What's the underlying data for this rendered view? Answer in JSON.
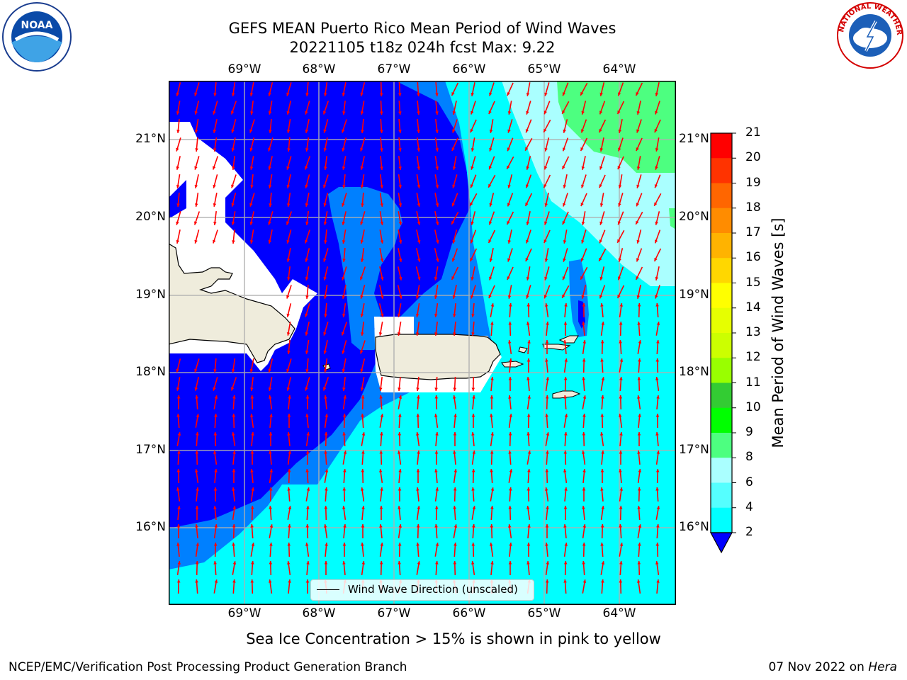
{
  "title": {
    "line1": "GEFS MEAN Puerto Rico Mean Period of Wind Waves",
    "line2": "20221105 t18z 024h fcst   Max: 9.22"
  },
  "axes": {
    "lon_labels": [
      "69°W",
      "68°W",
      "67°W",
      "66°W",
      "65°W",
      "64°W"
    ],
    "lat_labels": [
      "21°N",
      "20°N",
      "19°N",
      "18°N",
      "17°N",
      "16°N"
    ]
  },
  "legend": {
    "label": "Wind Wave Direction (unscaled)"
  },
  "colorbar": {
    "label": "Mean Period of Wind Waves [s]",
    "ticks": [
      "21",
      "20",
      "19",
      "18",
      "17",
      "16",
      "15",
      "14",
      "13",
      "12",
      "11",
      "10",
      "9",
      "8",
      "6",
      "4",
      "2"
    ],
    "colors": [
      "#ff0000",
      "#ff3300",
      "#ff6600",
      "#ff8c00",
      "#ffb300",
      "#ffd700",
      "#ffff00",
      "#e6ff00",
      "#ccff00",
      "#99ff00",
      "#33cc33",
      "#00ff00",
      "#4dff80",
      "#aaffff",
      "#55ffff",
      "#00ffff",
      "#0080ff",
      "#0000ff"
    ]
  },
  "footer": {
    "note": "Sea Ice Concentration > 15% is shown in pink to yellow",
    "left": "NCEP/EMC/Verification Post Processing Product Generation Branch",
    "right_date": "07 Nov 2022 on ",
    "right_host": "Hera"
  },
  "logos": {
    "left": "noaa-logo",
    "right": "national-weather-service-logo",
    "right_text": "NATIONAL WEATHER SERVICE"
  }
}
